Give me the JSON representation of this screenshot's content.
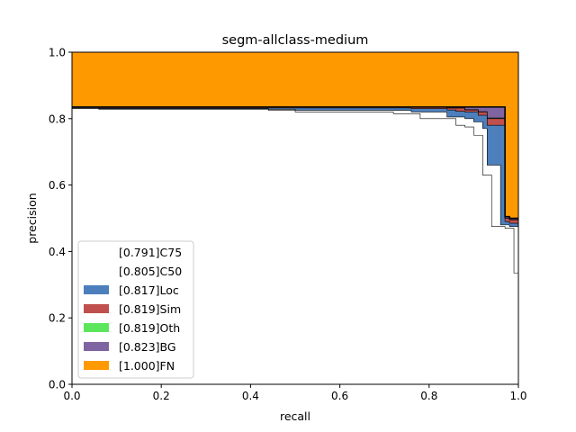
{
  "chart_data": {
    "type": "area",
    "title": "segm-allclass-medium",
    "xlabel": "recall",
    "ylabel": "precision",
    "xlim": [
      0,
      1
    ],
    "ylim": [
      0,
      1
    ],
    "xticks": [
      "0.0",
      "0.2",
      "0.4",
      "0.6",
      "0.8",
      "1.0"
    ],
    "yticks": [
      "0.0",
      "0.2",
      "0.4",
      "0.6",
      "0.8",
      "1.0"
    ],
    "grid": false,
    "legend_position": "lower-left",
    "legend": [
      {
        "label": "[0.791]C75",
        "color": "#ffffff"
      },
      {
        "label": "[0.805]C50",
        "color": "#ffffff"
      },
      {
        "label": "[0.817]Loc",
        "color": "#4c7fbc"
      },
      {
        "label": "[0.819]Sim",
        "color": "#c0504d"
      },
      {
        "label": "[0.819]Oth",
        "color": "#5ce65c"
      },
      {
        "label": "[0.823]BG",
        "color": "#8064a2"
      },
      {
        "label": "[1.000]FN",
        "color": "#ff9900"
      }
    ],
    "series": [
      {
        "name": "[0.791]C75",
        "color": "#ffffff",
        "x": [
          0,
          0.06,
          0.06,
          0.44,
          0.44,
          0.5,
          0.5,
          0.72,
          0.72,
          0.78,
          0.78,
          0.86,
          0.86,
          0.88,
          0.88,
          0.9,
          0.9,
          0.92,
          0.92,
          0.94,
          0.94,
          0.97,
          0.97,
          0.99,
          0.99,
          1.0
        ],
        "y": [
          0.83,
          0.83,
          0.828,
          0.828,
          0.825,
          0.825,
          0.82,
          0.82,
          0.815,
          0.815,
          0.8,
          0.8,
          0.78,
          0.78,
          0.775,
          0.775,
          0.75,
          0.75,
          0.63,
          0.63,
          0.475,
          0.475,
          0.47,
          0.47,
          0.335,
          0.335
        ]
      },
      {
        "name": "[0.805]C50",
        "color": "#ffffff",
        "x": [
          0,
          0.06,
          0.06,
          0.44,
          0.44,
          0.5,
          0.5,
          0.76,
          0.76,
          0.84,
          0.84,
          0.88,
          0.88,
          0.9,
          0.9,
          0.92,
          0.92,
          0.93,
          0.93,
          0.96,
          0.96,
          0.98,
          0.98,
          1.0
        ],
        "y": [
          0.832,
          0.832,
          0.83,
          0.83,
          0.828,
          0.828,
          0.825,
          0.825,
          0.82,
          0.82,
          0.805,
          0.805,
          0.8,
          0.8,
          0.79,
          0.79,
          0.77,
          0.77,
          0.66,
          0.66,
          0.48,
          0.48,
          0.475,
          0.475
        ]
      },
      {
        "name": "[0.817]Loc",
        "color": "#4c7fbc",
        "x": [
          0,
          0.06,
          0.06,
          0.76,
          0.76,
          0.84,
          0.84,
          0.86,
          0.86,
          0.88,
          0.88,
          0.91,
          0.91,
          0.93,
          0.93,
          0.97,
          0.97,
          0.98,
          0.98,
          1.0
        ],
        "y": [
          0.835,
          0.835,
          0.832,
          0.832,
          0.83,
          0.83,
          0.826,
          0.826,
          0.822,
          0.822,
          0.82,
          0.82,
          0.81,
          0.81,
          0.78,
          0.78,
          0.49,
          0.49,
          0.485,
          0.485
        ]
      },
      {
        "name": "[0.819]Sim",
        "color": "#c0504d",
        "x": [
          0,
          0.84,
          0.84,
          0.88,
          0.88,
          0.91,
          0.91,
          0.93,
          0.93,
          0.97,
          0.97,
          0.98,
          0.98,
          1.0
        ],
        "y": [
          0.835,
          0.835,
          0.832,
          0.832,
          0.826,
          0.826,
          0.82,
          0.82,
          0.8,
          0.8,
          0.5,
          0.5,
          0.495,
          0.495
        ]
      },
      {
        "name": "[0.819]Oth",
        "color": "#5ce65c",
        "x": [
          0,
          0.84,
          0.84,
          0.88,
          0.88,
          0.91,
          0.91,
          0.93,
          0.93,
          0.97,
          0.97,
          0.98,
          0.98,
          1.0
        ],
        "y": [
          0.835,
          0.835,
          0.832,
          0.832,
          0.827,
          0.827,
          0.821,
          0.821,
          0.802,
          0.802,
          0.5,
          0.5,
          0.496,
          0.496
        ]
      },
      {
        "name": "[0.823]BG",
        "color": "#8064a2",
        "x": [
          0,
          0.97,
          0.97,
          0.98,
          0.98,
          1.0
        ],
        "y": [
          0.835,
          0.835,
          0.505,
          0.505,
          0.5,
          0.5
        ]
      },
      {
        "name": "[1.000]FN",
        "color": "#ff9900",
        "x": [
          0,
          1.0
        ],
        "y": [
          1.0,
          1.0
        ]
      }
    ]
  }
}
